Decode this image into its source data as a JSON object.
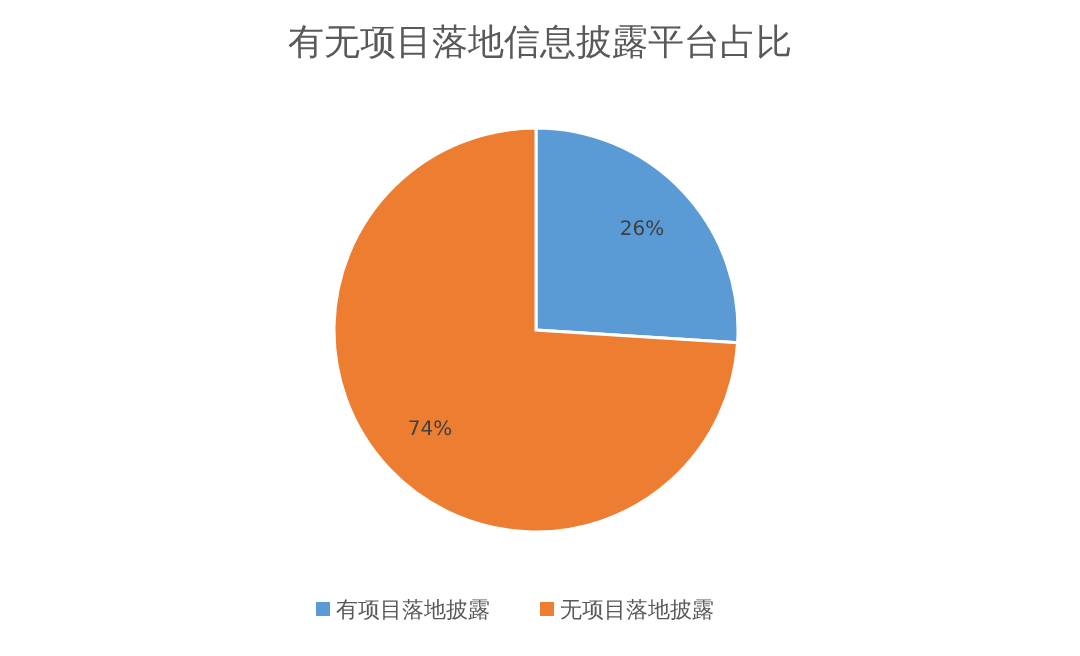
{
  "chart_data": {
    "type": "pie",
    "title": "有无项目落地信息披露平台占比",
    "categories": [
      "有项目落地披露",
      "无项目落地披露"
    ],
    "values": [
      26,
      74
    ],
    "colors": [
      "#5b9bd5",
      "#ed7d31"
    ],
    "value_labels": [
      "26%",
      "74%"
    ],
    "legend": "bottom"
  }
}
